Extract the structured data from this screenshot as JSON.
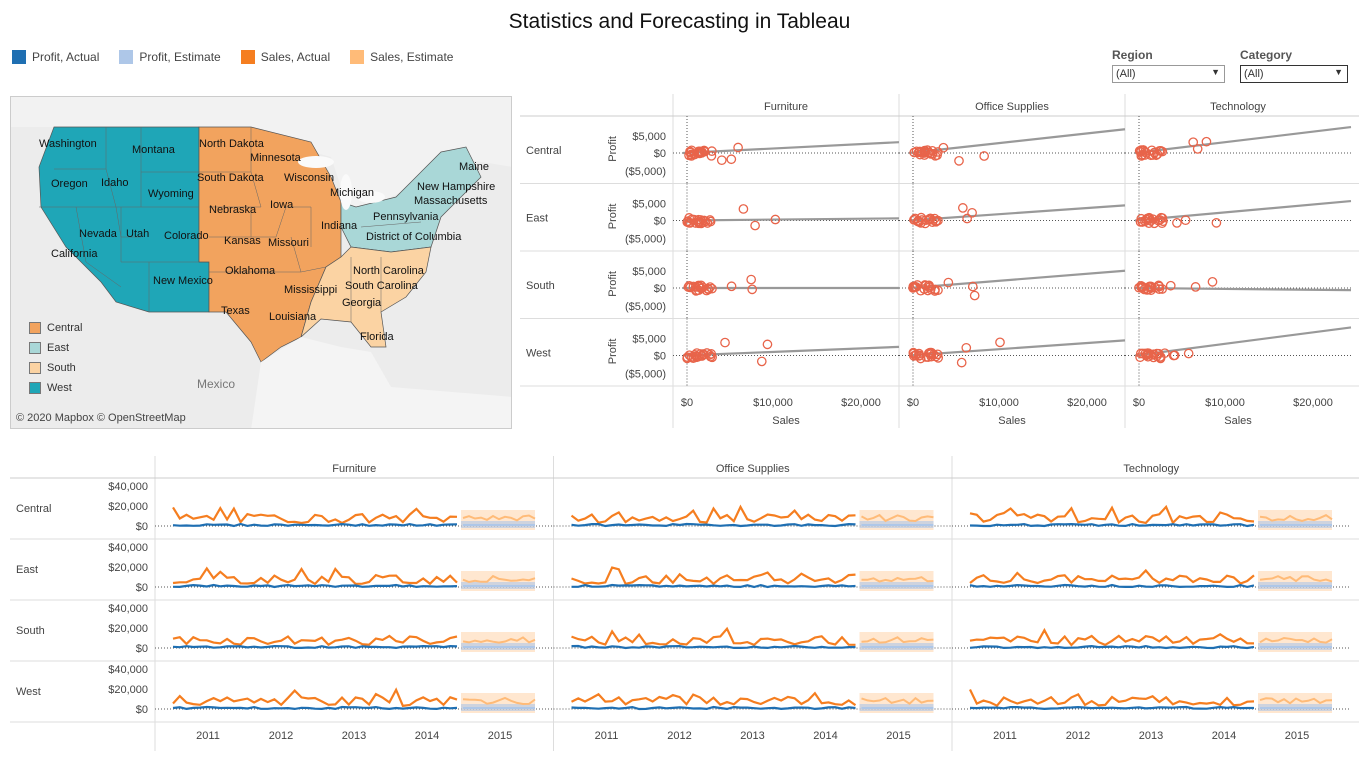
{
  "title": "Statistics and Forecasting in Tableau",
  "legend": [
    {
      "label": "Profit, Actual",
      "color": "#1f6fb2"
    },
    {
      "label": "Profit, Estimate",
      "color": "#aec7e8"
    },
    {
      "label": "Sales, Actual",
      "color": "#f57e20"
    },
    {
      "label": "Sales, Estimate",
      "color": "#ffbb78"
    }
  ],
  "filters": {
    "region": {
      "label": "Region",
      "value": "(All)"
    },
    "category": {
      "label": "Category",
      "value": "(All)"
    }
  },
  "map": {
    "states": [
      "Washington",
      "Montana",
      "Oregon",
      "Idaho",
      "Wyoming",
      "North Dakota",
      "Minnesota",
      "South Dakota",
      "Wisconsin",
      "Michigan",
      "Maine",
      "New Hampshire",
      "Massachusetts",
      "Nebraska",
      "Iowa",
      "Pennsylvania",
      "Nevada",
      "Utah",
      "Colorado",
      "Kansas",
      "Missouri",
      "Indiana",
      "District of Columbia",
      "California",
      "Oklahoma",
      "North Carolina",
      "South Carolina",
      "New Mexico",
      "Mississippi",
      "Georgia",
      "Texas",
      "Louisiana",
      "Florida"
    ],
    "legend": [
      {
        "label": "Central",
        "color": "#f2a35e"
      },
      {
        "label": "East",
        "color": "#a9d7d7"
      },
      {
        "label": "South",
        "color": "#fbd3a3"
      },
      {
        "label": "West",
        "color": "#1fa6b7"
      }
    ],
    "country_label": "Mexico",
    "credit": "© 2020 Mapbox © OpenStreetMap"
  },
  "scatter": {
    "categories": [
      "Furniture",
      "Office Supplies",
      "Technology"
    ],
    "regions": [
      "Central",
      "East",
      "South",
      "West"
    ],
    "y_axis_title": "Profit",
    "y_ticks": [
      "$5,000",
      "$0",
      "($5,000)"
    ],
    "x_ticks": [
      "$0",
      "$10,000",
      "$20,000"
    ],
    "x_axis_title": "Sales"
  },
  "forecast": {
    "categories": [
      "Furniture",
      "Office Supplies",
      "Technology"
    ],
    "regions": [
      "Central",
      "East",
      "South",
      "West"
    ],
    "y_ticks": [
      "$40,000",
      "$20,000",
      "$0"
    ],
    "x_ticks": [
      "2011",
      "2012",
      "2013",
      "2014",
      "2015"
    ]
  }
}
